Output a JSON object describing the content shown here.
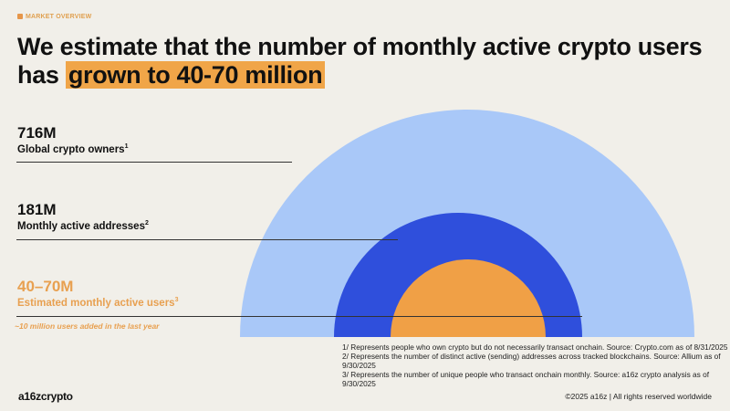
{
  "tag": "MARKET OVERVIEW",
  "title": {
    "line1": "We estimate that the number of monthly active crypto users",
    "prefix": "has ",
    "highlight": "grown to 40-70 million"
  },
  "metrics": [
    {
      "value": "716M",
      "label": "Global crypto owners",
      "note": "1"
    },
    {
      "value": "181M",
      "label": "Monthly active addresses",
      "note": "2"
    },
    {
      "value": "40–70M",
      "label": "Estimated monthly active users",
      "note": "3",
      "sub": "~10 million users added in the last year"
    }
  ],
  "footnotes": [
    "1/ Represents people who own crypto but do not necessarily transact onchain. Source: Crypto.com as of 8/31/2025",
    "2/ Represents the number of distinct active (sending) addresses across tracked blockchains. Source: Allium as of 9/30/2025",
    "3/ Represents the number of unique people who transact onchain monthly. Source: a16z crypto analysis as of 9/30/2025"
  ],
  "logo": "a16zcrypto",
  "copyright": "©2025 a16z | All rights reserved worldwide",
  "colors": {
    "owners": "#a9c8f8",
    "addresses": "#2f4fdc",
    "users": "#f0a046",
    "accent": "#e6964a"
  }
}
